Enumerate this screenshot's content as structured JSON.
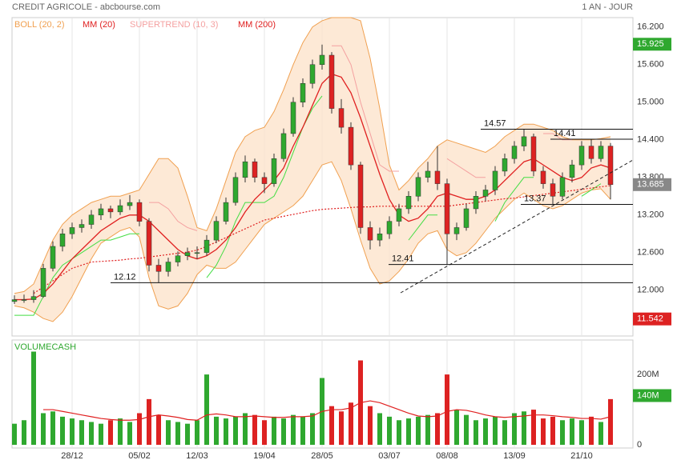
{
  "chart_data": {
    "type": "candlestick",
    "title": "CREDIT AGRICOLE - abcbourse.com",
    "period": "1 AN - JOUR",
    "categories": [
      null,
      null,
      null,
      null,
      null,
      null,
      "28/12",
      null,
      null,
      null,
      null,
      null,
      null,
      "05/02",
      null,
      null,
      null,
      null,
      null,
      "12/03",
      null,
      null,
      null,
      null,
      null,
      null,
      "19/04",
      null,
      null,
      null,
      null,
      null,
      "28/05",
      null,
      null,
      null,
      null,
      null,
      null,
      "03/07",
      null,
      null,
      null,
      null,
      null,
      "08/08",
      null,
      null,
      null,
      null,
      null,
      null,
      "13/09",
      null,
      null,
      null,
      null,
      null,
      null,
      "21/10",
      null,
      null,
      null
    ],
    "candles": [
      [
        11.82,
        11.92,
        11.78,
        11.85
      ],
      [
        11.85,
        11.93,
        11.8,
        11.85
      ],
      [
        11.85,
        12.0,
        11.8,
        11.9
      ],
      [
        11.9,
        12.42,
        11.88,
        12.35
      ],
      [
        12.35,
        12.78,
        12.3,
        12.7
      ],
      [
        12.7,
        12.98,
        12.62,
        12.9
      ],
      [
        12.9,
        13.08,
        12.82,
        13.0
      ],
      [
        13.0,
        13.13,
        12.92,
        13.05
      ],
      [
        13.05,
        13.28,
        12.98,
        13.2
      ],
      [
        13.2,
        13.38,
        13.12,
        13.3
      ],
      [
        13.3,
        13.35,
        13.15,
        13.25
      ],
      [
        13.25,
        13.45,
        13.2,
        13.35
      ],
      [
        13.35,
        13.52,
        13.28,
        13.4
      ],
      [
        13.4,
        13.45,
        13.02,
        13.1
      ],
      [
        13.1,
        13.15,
        12.3,
        12.4
      ],
      [
        12.4,
        12.5,
        12.12,
        12.3
      ],
      [
        12.3,
        12.52,
        12.22,
        12.45
      ],
      [
        12.45,
        12.62,
        12.38,
        12.55
      ],
      [
        12.55,
        12.68,
        12.48,
        12.6
      ],
      [
        12.6,
        12.7,
        12.5,
        12.6
      ],
      [
        12.6,
        12.88,
        12.55,
        12.8
      ],
      [
        12.8,
        13.18,
        12.75,
        13.1
      ],
      [
        13.1,
        13.48,
        13.05,
        13.4
      ],
      [
        13.4,
        13.88,
        13.35,
        13.8
      ],
      [
        13.8,
        14.15,
        13.72,
        14.05
      ],
      [
        14.05,
        14.1,
        13.72,
        13.8
      ],
      [
        13.8,
        13.88,
        13.55,
        13.7
      ],
      [
        13.7,
        14.18,
        13.65,
        14.1
      ],
      [
        14.1,
        14.58,
        14.05,
        14.5
      ],
      [
        14.5,
        15.08,
        14.45,
        15.0
      ],
      [
        15.0,
        15.38,
        14.92,
        15.3
      ],
      [
        15.3,
        15.68,
        15.22,
        15.6
      ],
      [
        15.6,
        15.92,
        15.52,
        15.75
      ],
      [
        15.75,
        15.8,
        14.82,
        14.9
      ],
      [
        14.9,
        15.05,
        14.5,
        14.6
      ],
      [
        14.6,
        14.68,
        13.92,
        14.0
      ],
      [
        14.0,
        14.05,
        12.9,
        13.0
      ],
      [
        13.0,
        13.1,
        12.65,
        12.8
      ],
      [
        12.8,
        13.0,
        12.7,
        12.9
      ],
      [
        12.9,
        13.18,
        12.82,
        13.1
      ],
      [
        13.1,
        13.38,
        13.02,
        13.3
      ],
      [
        13.3,
        13.58,
        13.22,
        13.5
      ],
      [
        13.5,
        13.88,
        13.42,
        13.8
      ],
      [
        13.8,
        14.05,
        13.72,
        13.9
      ],
      [
        13.9,
        14.3,
        13.6,
        13.7
      ],
      [
        13.7,
        13.78,
        12.41,
        12.9
      ],
      [
        12.9,
        13.08,
        12.8,
        13.0
      ],
      [
        13.0,
        13.38,
        12.95,
        13.3
      ],
      [
        13.3,
        13.58,
        13.22,
        13.5
      ],
      [
        13.5,
        13.68,
        13.42,
        13.6
      ],
      [
        13.6,
        13.98,
        13.52,
        13.9
      ],
      [
        13.9,
        14.18,
        13.82,
        14.1
      ],
      [
        14.1,
        14.38,
        14.02,
        14.3
      ],
      [
        14.3,
        14.57,
        14.22,
        14.45
      ],
      [
        14.45,
        14.5,
        13.82,
        13.9
      ],
      [
        13.9,
        13.98,
        13.62,
        13.7
      ],
      [
        13.7,
        13.78,
        13.37,
        13.5
      ],
      [
        13.5,
        13.88,
        13.45,
        13.8
      ],
      [
        13.8,
        14.08,
        13.72,
        14.0
      ],
      [
        14.0,
        14.38,
        13.92,
        14.3
      ],
      [
        14.3,
        14.41,
        14.02,
        14.1
      ],
      [
        14.1,
        14.38,
        14.05,
        14.3
      ],
      [
        14.3,
        14.35,
        13.45,
        13.685
      ]
    ],
    "up_color": "#2fa82f",
    "down_color": "#dd2222",
    "boll": {
      "name": "BOLL (20, 2)",
      "color": "#f0a050",
      "fill": "#fde4cc",
      "upper": [
        11.95,
        11.98,
        12.1,
        12.45,
        12.8,
        13.05,
        13.2,
        13.3,
        13.4,
        13.45,
        13.5,
        13.5,
        13.55,
        13.6,
        13.85,
        14.1,
        14.1,
        13.95,
        13.5,
        13.0,
        12.95,
        13.3,
        13.75,
        14.2,
        14.45,
        14.55,
        14.6,
        14.85,
        15.2,
        15.6,
        15.95,
        16.2,
        16.3,
        16.35,
        16.35,
        16.35,
        16.3,
        15.7,
        14.9,
        14.0,
        13.6,
        13.75,
        13.95,
        14.1,
        14.3,
        14.4,
        14.35,
        14.3,
        14.25,
        14.2,
        14.3,
        14.45,
        14.55,
        14.65,
        14.65,
        14.6,
        14.55,
        14.45,
        14.4,
        14.4,
        14.4,
        14.42,
        14.45
      ],
      "lower": [
        11.75,
        11.72,
        11.65,
        11.55,
        11.5,
        11.65,
        11.9,
        12.2,
        12.5,
        12.75,
        12.85,
        12.95,
        13.0,
        12.85,
        12.2,
        11.75,
        11.7,
        11.75,
        11.95,
        12.25,
        12.4,
        12.35,
        12.35,
        12.45,
        12.65,
        12.85,
        13.05,
        13.15,
        13.25,
        13.35,
        13.5,
        13.75,
        14.0,
        14.05,
        13.75,
        13.3,
        12.8,
        12.35,
        12.1,
        12.15,
        12.3,
        12.5,
        12.75,
        12.9,
        12.95,
        12.65,
        12.55,
        12.6,
        12.75,
        12.95,
        13.15,
        13.3,
        13.45,
        13.55,
        13.45,
        13.35,
        13.3,
        13.35,
        13.45,
        13.55,
        13.6,
        13.62,
        13.45
      ]
    },
    "mm20": {
      "name": "MM (20)",
      "color": "#e02020",
      "values": [
        11.85,
        11.85,
        11.86,
        11.95,
        12.1,
        12.3,
        12.5,
        12.65,
        12.8,
        12.95,
        13.05,
        13.15,
        13.2,
        13.2,
        13.1,
        12.95,
        12.8,
        12.65,
        12.55,
        12.5,
        12.55,
        12.65,
        12.8,
        13.0,
        13.25,
        13.45,
        13.6,
        13.75,
        13.95,
        14.3,
        14.6,
        14.95,
        15.3,
        15.45,
        15.4,
        15.15,
        14.75,
        14.3,
        13.85,
        13.45,
        13.2,
        13.1,
        13.15,
        13.3,
        13.5,
        13.55,
        13.5,
        13.45,
        13.45,
        13.5,
        13.6,
        13.75,
        13.9,
        14.05,
        14.1,
        14.0,
        13.9,
        13.8,
        13.75,
        13.8,
        13.95,
        14.0,
        13.95
      ]
    },
    "supertrend": {
      "name": "SUPERTREND (10, 3)",
      "color": "#f4a0a0",
      "up_color": "#44dd44",
      "values": [
        11.6,
        11.6,
        11.6,
        11.9,
        12.2,
        12.4,
        12.5,
        12.6,
        12.7,
        12.8,
        12.8,
        12.85,
        12.9,
        12.9,
        13.4,
        13.4,
        13.3,
        13.1,
        13.0,
        12.95,
        12.2,
        12.4,
        12.7,
        13.1,
        13.4,
        13.4,
        13.4,
        13.5,
        13.8,
        14.2,
        14.6,
        14.9,
        15.1,
        15.9,
        15.9,
        15.6,
        15.0,
        14.5,
        14.0,
        13.9,
        13.9,
        12.8,
        13.0,
        13.2,
        13.2,
        14.1,
        14.0,
        13.9,
        13.8,
        13.8,
        13.1,
        13.4,
        13.6,
        13.8,
        13.8,
        14.5,
        14.5,
        14.4,
        14.4,
        13.5,
        13.6,
        13.7,
        13.7
      ]
    },
    "mm200": {
      "name": "MM (200)",
      "color": "#e02020",
      "dashed": true,
      "values": [
        null,
        null,
        11.95,
        12.05,
        12.15,
        12.25,
        12.35,
        12.4,
        12.45,
        12.46,
        12.47,
        12.48,
        12.5,
        12.51,
        12.53,
        12.55,
        12.57,
        12.59,
        12.61,
        12.64,
        12.7,
        12.77,
        12.84,
        12.91,
        12.98,
        13.05,
        13.12,
        13.15,
        13.18,
        13.21,
        13.24,
        13.27,
        13.29,
        13.3,
        13.31,
        13.32,
        13.33,
        13.33,
        13.34,
        13.34,
        13.34,
        13.34,
        13.34,
        13.34,
        13.34,
        13.34,
        13.36,
        13.38,
        13.4,
        13.42,
        13.44,
        13.46,
        13.47,
        13.49,
        13.51,
        13.53,
        13.55,
        13.57,
        13.59,
        13.61,
        13.63,
        13.65,
        13.67
      ]
    },
    "ylim": [
      11.27,
      16.35
    ],
    "yticks": [
      {
        "value": 12,
        "label": "12.000"
      },
      {
        "value": 12.6,
        "label": "12.600"
      },
      {
        "value": 13.2,
        "label": "13.200"
      },
      {
        "value": 13.8,
        "label": "13.800"
      },
      {
        "value": 14.4,
        "label": "14.400"
      },
      {
        "value": 15.0,
        "label": "15.000"
      },
      {
        "value": 15.6,
        "label": "15.600"
      },
      {
        "value": 16.2,
        "label": "16.200"
      }
    ],
    "grid": true,
    "levels": [
      14.57,
      14.41,
      13.37,
      12.41,
      12.12
    ],
    "tags": [
      {
        "value": 15.925,
        "color": "#2fa82f"
      },
      {
        "value": 13.685,
        "color": "#888888"
      },
      {
        "value": 11.542,
        "color": "#dd2222"
      }
    ],
    "volume": {
      "label": "VOLUMECASH",
      "values": [
        60,
        70,
        265,
        90,
        95,
        80,
        75,
        70,
        65,
        60,
        70,
        75,
        65,
        90,
        130,
        85,
        70,
        65,
        60,
        70,
        200,
        80,
        75,
        80,
        90,
        85,
        70,
        80,
        75,
        85,
        80,
        90,
        190,
        110,
        95,
        120,
        240,
        110,
        90,
        80,
        70,
        75,
        80,
        85,
        90,
        200,
        100,
        85,
        70,
        75,
        80,
        70,
        90,
        95,
        100,
        75,
        80,
        70,
        75,
        70,
        80,
        65,
        130
      ],
      "ma": [
        null,
        null,
        null,
        100,
        100,
        95,
        90,
        85,
        80,
        75,
        72,
        70,
        70,
        72,
        80,
        85,
        82,
        78,
        72,
        70,
        85,
        88,
        85,
        80,
        80,
        82,
        80,
        78,
        78,
        80,
        80,
        82,
        95,
        100,
        100,
        105,
        120,
        125,
        120,
        110,
        100,
        90,
        82,
        80,
        82,
        95,
        100,
        98,
        92,
        85,
        80,
        78,
        80,
        82,
        85,
        85,
        83,
        80,
        78,
        75,
        75,
        73,
        80
      ],
      "ma_color": "#e02020",
      "ylim": [
        -9,
        298
      ],
      "yticks": [
        0,
        {
          "value": 200,
          "label": "200M"
        }
      ],
      "tag": {
        "value": 140,
        "label": "140M",
        "color": "#2fa82f"
      }
    }
  }
}
